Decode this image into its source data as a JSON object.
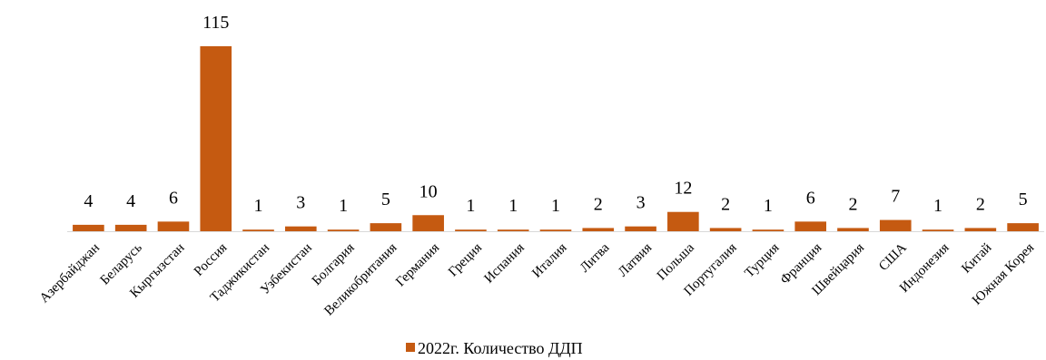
{
  "chart_data": {
    "type": "bar",
    "categories": [
      "Азербайджан",
      "Беларусь",
      "Кыргызстан",
      "Россия",
      "Таджикистан",
      "Узбекистан",
      "Болгария",
      "Великобритания",
      "Германия",
      "Греция",
      "Испания",
      "Италия",
      "Литва",
      "Латвия",
      "Польша",
      "Португалия",
      "Турция",
      "Франция",
      "Швейцария",
      "США",
      "Индонезия",
      "Китай",
      "Южная Корея"
    ],
    "series": [
      {
        "name": "2022г. Количество ДДП",
        "values": [
          4,
          4,
          6,
          115,
          1,
          3,
          1,
          5,
          10,
          1,
          1,
          1,
          2,
          3,
          12,
          2,
          1,
          6,
          2,
          7,
          1,
          2,
          5
        ]
      }
    ],
    "value_labels": [
      "4",
      "4",
      "6",
      "115",
      "1",
      "3",
      "1",
      "5",
      "10",
      "1",
      "1",
      "1",
      "2",
      "3",
      "12",
      "2",
      "1",
      "6",
      "2",
      "7",
      "1",
      "2",
      "5"
    ],
    "title": "",
    "xlabel": "",
    "ylabel": "",
    "ylim": [
      0,
      115
    ],
    "grid": false,
    "legend_position": "bottom",
    "colors": {
      "bar": "#C55A11",
      "axis": "#D9D9D9"
    }
  }
}
